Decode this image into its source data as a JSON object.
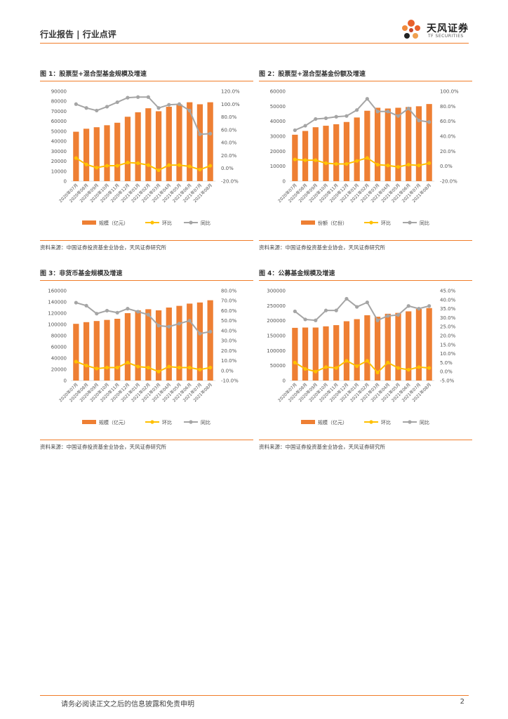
{
  "header": {
    "section": "行业报告 | 行业点评",
    "logo_cn": "天风证券",
    "logo_en": "TF SECURITIES"
  },
  "colors": {
    "bar": "#ee7f33",
    "mom": "#ffc000",
    "yoy": "#a5a5a5",
    "accent": "#f07d2a"
  },
  "chart_data": [
    {
      "type": "bar",
      "title": "图 1：股票型+混合型基金规模及增速",
      "source": "资料来源：中国证券投资基金业协会，天风证券研究所",
      "categories": [
        "2020年07月",
        "2020年08月",
        "2020年09月",
        "2020年10月",
        "2020年11月",
        "2020年12月",
        "2021年01月",
        "2021年02月",
        "2021年03月",
        "2021年04月",
        "2021年05月",
        "2021年06月",
        "2021年07月",
        "2021年08月"
      ],
      "left_axis": {
        "ylim": [
          0,
          90000
        ],
        "ticks": [
          "0",
          "10000",
          "20000",
          "30000",
          "40000",
          "50000",
          "60000",
          "70000",
          "80000",
          "90000"
        ]
      },
      "right_axis": {
        "ylim": [
          -20,
          120
        ],
        "ticks": [
          "-20.0%",
          "0.0%",
          "20.0%",
          "40.0%",
          "60.0%",
          "80.0%",
          "100.0%",
          "120.0%"
        ]
      },
      "series": [
        {
          "name": "规模（亿元）",
          "type": "bar",
          "axis": "left",
          "values": [
            49500,
            52500,
            54000,
            56000,
            58500,
            64500,
            69000,
            73000,
            70000,
            74500,
            77000,
            79000,
            77000,
            79000
          ]
        },
        {
          "name": "环比",
          "type": "line",
          "axis": "right",
          "values": [
            16,
            6,
            1,
            4,
            4,
            9,
            8,
            5,
            -3,
            5,
            5,
            3,
            -2,
            4
          ]
        },
        {
          "name": "同比",
          "type": "line",
          "axis": "right",
          "values": [
            100,
            94,
            90,
            96,
            103,
            110,
            111,
            111,
            94,
            99,
            100,
            90,
            53,
            54
          ]
        }
      ]
    },
    {
      "type": "bar",
      "title": "图 2：股票型+混合型基金份额及增速",
      "source": "资料来源：中国证券投资基金业协会，天风证券研究所",
      "categories": [
        "2020年07月",
        "2020年08月",
        "2020年09月",
        "2020年10月",
        "2020年11月",
        "2020年12月",
        "2021年01月",
        "2021年02月",
        "2021年03月",
        "2021年04月",
        "2021年05月",
        "2021年06月",
        "2021年07月",
        "2021年08月"
      ],
      "left_axis": {
        "ylim": [
          0,
          60000
        ],
        "ticks": [
          "0",
          "10000",
          "20000",
          "30000",
          "40000",
          "50000",
          "60000"
        ]
      },
      "right_axis": {
        "ylim": [
          -20,
          100
        ],
        "ticks": [
          "-20.0%",
          "0.0%",
          "20.0%",
          "40.0%",
          "60.0%",
          "80.0%",
          "100.0%"
        ]
      },
      "series": [
        {
          "name": "份额（亿份）",
          "type": "bar",
          "axis": "left",
          "values": [
            31000,
            33500,
            36000,
            37000,
            38000,
            39500,
            42500,
            47000,
            49000,
            48500,
            49000,
            49500,
            50000,
            51500
          ]
        },
        {
          "name": "环比",
          "type": "line",
          "axis": "right",
          "values": [
            9,
            8,
            8,
            4,
            3,
            3,
            7,
            11,
            2,
            1,
            -1,
            2,
            1,
            4
          ]
        },
        {
          "name": "同比",
          "type": "line",
          "axis": "right",
          "values": [
            48,
            54,
            63,
            64,
            66,
            67,
            75,
            90,
            73,
            73,
            67,
            77,
            61,
            59
          ]
        }
      ]
    },
    {
      "type": "bar",
      "title": "图 3：非货币基金规模及增速",
      "source": "资料来源：中国证券投资基金业协会，天风证券研究所",
      "categories": [
        "2020年07月",
        "2020年08月",
        "2020年09月",
        "2020年10月",
        "2020年11月",
        "2020年12月",
        "2021年01月",
        "2021年02月",
        "2021年03月",
        "2021年04月",
        "2021年05月",
        "2021年06月",
        "2021年07月",
        "2021年08月"
      ],
      "left_axis": {
        "ylim": [
          0,
          160000
        ],
        "ticks": [
          "0",
          "20000",
          "40000",
          "60000",
          "80000",
          "100000",
          "120000",
          "140000",
          "160000"
        ]
      },
      "right_axis": {
        "ylim": [
          -10,
          80
        ],
        "ticks": [
          "-10.0%",
          "0.0%",
          "10.0%",
          "20.0%",
          "30.0%",
          "40.0%",
          "50.0%",
          "60.0%",
          "70.0%",
          "80.0%"
        ]
      },
      "series": [
        {
          "name": "规模（亿元）",
          "type": "bar",
          "axis": "left",
          "values": [
            101000,
            104000,
            106000,
            108000,
            110000,
            120000,
            125000,
            127000,
            125000,
            130000,
            133000,
            137000,
            139000,
            143000
          ]
        },
        {
          "name": "环比",
          "type": "line",
          "axis": "right",
          "values": [
            9,
            5,
            2,
            3,
            3,
            8,
            4,
            3,
            -1,
            4,
            3,
            3,
            1,
            3
          ]
        },
        {
          "name": "同比",
          "type": "line",
          "axis": "right",
          "values": [
            68,
            65,
            57,
            60,
            58,
            62,
            59,
            56,
            45,
            44,
            47,
            50,
            37,
            39
          ]
        }
      ]
    },
    {
      "type": "bar",
      "title": "图 4：公募基金规模及增速",
      "source": "资料来源：中国证券投资基金业协会，天风证券研究所",
      "categories": [
        "2020年07月",
        "2020年08月",
        "2020年09月",
        "2020年10月",
        "2020年11月",
        "2020年12月",
        "2021年01月",
        "2021年02月",
        "2021年03月",
        "2021年04月",
        "2021年05月",
        "2021年06月",
        "2021年07月",
        "2021年08月"
      ],
      "left_axis": {
        "ylim": [
          0,
          300000
        ],
        "ticks": [
          "0",
          "50000",
          "100000",
          "150000",
          "200000",
          "250000",
          "300000"
        ]
      },
      "right_axis": {
        "ylim": [
          -5,
          45
        ],
        "ticks": [
          "-5.0%",
          "0.0%",
          "5.0%",
          "10.0%",
          "15.0%",
          "20.0%",
          "25.0%",
          "30.0%",
          "35.0%",
          "40.0%",
          "45.0%"
        ]
      },
      "series": [
        {
          "name": "规模（亿元）",
          "type": "bar",
          "axis": "left",
          "values": [
            176000,
            177000,
            177000,
            181000,
            185000,
            198000,
            205000,
            218000,
            213000,
            223000,
            226000,
            231000,
            239000,
            242000
          ]
        },
        {
          "name": "环比",
          "type": "line",
          "axis": "right",
          "values": [
            5,
            1.5,
            0,
            2.5,
            2,
            6,
            3,
            6,
            -0.5,
            5,
            2,
            1,
            2.5,
            2
          ]
        },
        {
          "name": "同比",
          "type": "line",
          "axis": "right",
          "values": [
            33.5,
            29,
            28.5,
            34,
            34,
            40.5,
            36,
            38.5,
            28.5,
            31,
            31.5,
            36.5,
            35,
            36.5
          ]
        }
      ]
    }
  ],
  "footer": {
    "notice": "请务必阅读正文之后的信息披露和免责申明",
    "page": "2"
  }
}
